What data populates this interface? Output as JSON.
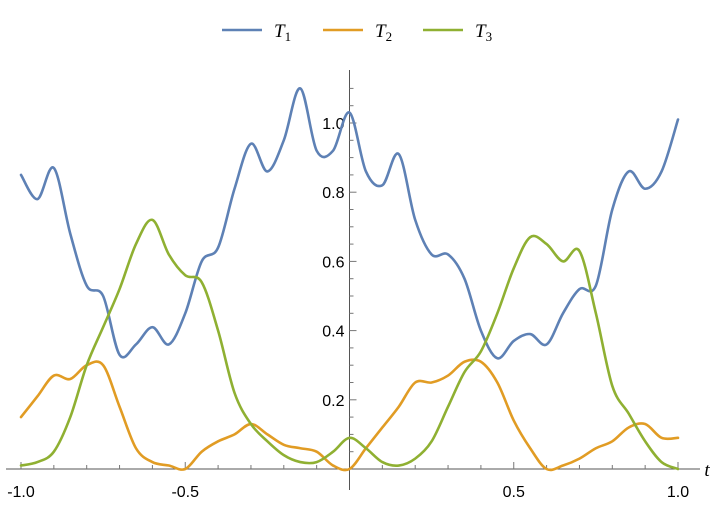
{
  "chart_data": {
    "type": "line",
    "title": "",
    "xlabel": "t",
    "ylabel": "",
    "xlim": [
      -1.0,
      1.0
    ],
    "ylim": [
      0.0,
      1.15
    ],
    "x_ticks": [
      "-1.0",
      "-0.5",
      "0.5",
      "1.0"
    ],
    "x_tick_values": [
      -1.0,
      -0.5,
      0.5,
      1.0
    ],
    "y_ticks": [
      "0.2",
      "0.4",
      "0.6",
      "0.8",
      "1.0"
    ],
    "y_tick_values": [
      0.2,
      0.4,
      0.6,
      0.8,
      1.0
    ],
    "legend_position": "top",
    "grid": false,
    "x": [
      -1.0,
      -0.95,
      -0.9,
      -0.85,
      -0.8,
      -0.75,
      -0.7,
      -0.65,
      -0.6,
      -0.55,
      -0.5,
      -0.45,
      -0.4,
      -0.35,
      -0.3,
      -0.25,
      -0.2,
      -0.15,
      -0.1,
      -0.05,
      0.0,
      0.05,
      0.1,
      0.15,
      0.2,
      0.25,
      0.3,
      0.35,
      0.4,
      0.45,
      0.5,
      0.55,
      0.6,
      0.65,
      0.7,
      0.75,
      0.8,
      0.85,
      0.9,
      0.95,
      1.0
    ],
    "series": [
      {
        "name": "T",
        "subscript": "1",
        "color": "#5E81B5",
        "values": [
          0.85,
          0.78,
          0.87,
          0.68,
          0.53,
          0.5,
          0.33,
          0.36,
          0.41,
          0.36,
          0.45,
          0.6,
          0.64,
          0.81,
          0.94,
          0.86,
          0.95,
          1.1,
          0.92,
          0.92,
          1.03,
          0.86,
          0.82,
          0.91,
          0.72,
          0.62,
          0.62,
          0.55,
          0.4,
          0.32,
          0.37,
          0.39,
          0.36,
          0.45,
          0.52,
          0.53,
          0.75,
          0.86,
          0.81,
          0.86,
          1.01
        ]
      },
      {
        "name": "T",
        "subscript": "2",
        "color": "#E19C24",
        "values": [
          0.15,
          0.21,
          0.27,
          0.26,
          0.3,
          0.3,
          0.18,
          0.06,
          0.02,
          0.01,
          0.0,
          0.05,
          0.08,
          0.1,
          0.13,
          0.1,
          0.07,
          0.06,
          0.05,
          0.01,
          0.0,
          0.06,
          0.12,
          0.18,
          0.25,
          0.25,
          0.27,
          0.31,
          0.31,
          0.25,
          0.14,
          0.06,
          0.0,
          0.01,
          0.03,
          0.06,
          0.08,
          0.12,
          0.13,
          0.09,
          0.09
        ]
      },
      {
        "name": "T",
        "subscript": "3",
        "color": "#8FB032",
        "values": [
          0.01,
          0.02,
          0.05,
          0.15,
          0.3,
          0.41,
          0.52,
          0.65,
          0.72,
          0.62,
          0.56,
          0.54,
          0.4,
          0.22,
          0.13,
          0.08,
          0.04,
          0.02,
          0.02,
          0.05,
          0.09,
          0.06,
          0.02,
          0.01,
          0.03,
          0.08,
          0.18,
          0.28,
          0.34,
          0.45,
          0.58,
          0.67,
          0.65,
          0.6,
          0.63,
          0.45,
          0.24,
          0.16,
          0.08,
          0.02,
          0.0
        ]
      }
    ]
  }
}
